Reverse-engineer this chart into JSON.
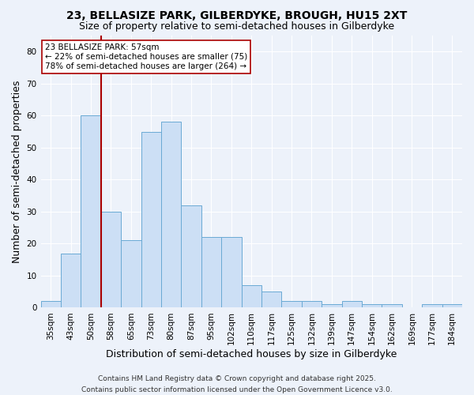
{
  "title": "23, BELLASIZE PARK, GILBERDYKE, BROUGH, HU15 2XT",
  "subtitle": "Size of property relative to semi-detached houses in Gilberdyke",
  "xlabel": "Distribution of semi-detached houses by size in Gilberdyke",
  "ylabel": "Number of semi-detached properties",
  "categories": [
    "35sqm",
    "43sqm",
    "50sqm",
    "58sqm",
    "65sqm",
    "73sqm",
    "80sqm",
    "87sqm",
    "95sqm",
    "102sqm",
    "110sqm",
    "117sqm",
    "125sqm",
    "132sqm",
    "139sqm",
    "147sqm",
    "154sqm",
    "162sqm",
    "169sqm",
    "177sqm",
    "184sqm"
  ],
  "values": [
    2,
    17,
    60,
    30,
    21,
    55,
    58,
    32,
    22,
    22,
    7,
    5,
    2,
    2,
    1,
    2,
    1,
    1,
    0,
    1,
    1
  ],
  "bar_color": "#ccdff5",
  "bar_edge_color": "#6aaad4",
  "vline_color": "#aa0000",
  "annotation_text": "23 BELLASIZE PARK: 57sqm\n← 22% of semi-detached houses are smaller (75)\n78% of semi-detached houses are larger (264) →",
  "annotation_box_color": "white",
  "annotation_box_edge_color": "#aa0000",
  "ylim": [
    0,
    85
  ],
  "yticks": [
    0,
    10,
    20,
    30,
    40,
    50,
    60,
    70,
    80
  ],
  "footnote": "Contains HM Land Registry data © Crown copyright and database right 2025.\nContains public sector information licensed under the Open Government Licence v3.0.",
  "background_color": "#edf2fa",
  "grid_color": "white",
  "title_fontsize": 10,
  "subtitle_fontsize": 9,
  "axis_label_fontsize": 9,
  "tick_fontsize": 7.5,
  "annotation_fontsize": 7.5,
  "footnote_fontsize": 6.5
}
